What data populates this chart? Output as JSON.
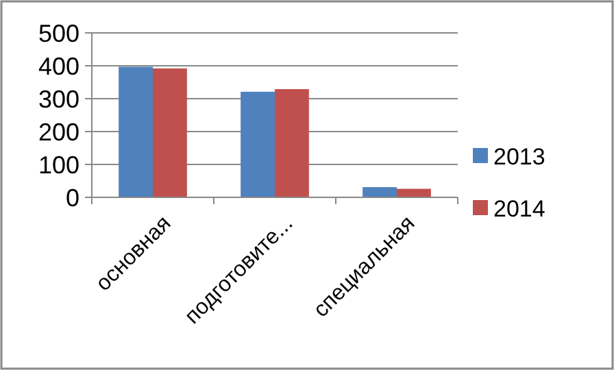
{
  "chart_data": {
    "type": "bar",
    "categories": [
      "основная",
      "подготовите...",
      "специальная"
    ],
    "series": [
      {
        "name": "2013",
        "color": "#4f81bd",
        "values": [
          397,
          321,
          31
        ]
      },
      {
        "name": "2014",
        "color": "#c0504d",
        "values": [
          392,
          329,
          26
        ]
      }
    ],
    "ylim": [
      0,
      500
    ],
    "yticks": [
      0,
      100,
      200,
      300,
      400,
      500
    ],
    "grid": "y",
    "legend": "right"
  }
}
